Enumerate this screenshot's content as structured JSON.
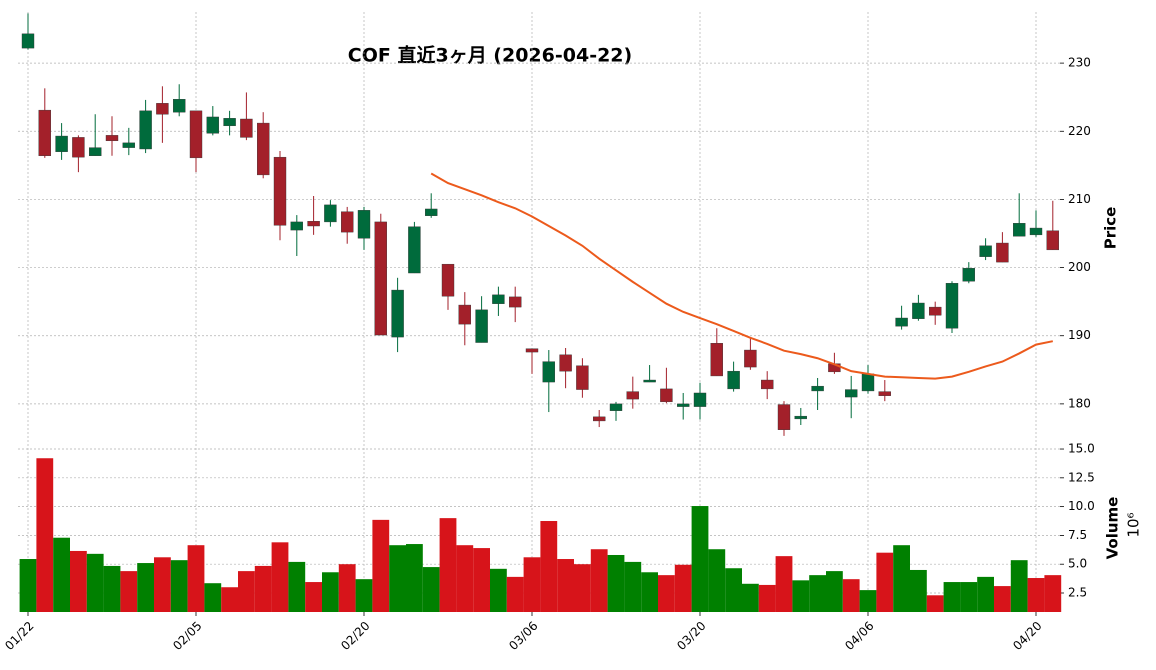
{
  "chart_data": {
    "type": "candlestick",
    "title": "COF  直近3ヶ月  (2026-04-22)",
    "y_label": "Price",
    "categories": [
      "01/22",
      null,
      null,
      null,
      null,
      null,
      null,
      null,
      null,
      null,
      "02/05",
      null,
      null,
      null,
      null,
      null,
      null,
      null,
      null,
      null,
      "02/20",
      null,
      null,
      null,
      null,
      null,
      null,
      null,
      null,
      null,
      "03/06",
      null,
      null,
      null,
      null,
      null,
      null,
      null,
      null,
      null,
      "03/20",
      null,
      null,
      null,
      null,
      null,
      null,
      null,
      null,
      null,
      "04/06",
      null,
      null,
      null,
      null,
      null,
      null,
      null,
      null,
      null,
      "04/20",
      null
    ],
    "open": [
      232.2,
      223.1,
      217.0,
      219.1,
      216.4,
      219.4,
      217.6,
      217.4,
      224.1,
      222.8,
      223.0,
      219.7,
      220.8,
      221.8,
      221.2,
      216.2,
      205.5,
      206.8,
      206.7,
      208.2,
      204.3,
      206.7,
      189.8,
      199.2,
      207.6,
      200.5,
      194.5,
      189.0,
      194.7,
      195.7,
      188.1,
      183.2,
      187.2,
      185.6,
      178.1,
      179.0,
      181.8,
      183.2,
      182.2,
      179.6,
      179.6,
      188.9,
      182.2,
      187.9,
      183.5,
      179.9,
      177.8,
      181.9,
      185.9,
      181.0,
      181.9,
      181.8,
      191.4,
      192.5,
      194.2,
      191.1,
      198.0,
      201.6,
      203.6,
      204.6,
      204.8,
      205.4
    ],
    "high": [
      237.3,
      226.3,
      221.2,
      219.4,
      222.5,
      222.2,
      220.5,
      224.6,
      226.6,
      226.9,
      223.0,
      223.7,
      223.0,
      225.7,
      222.8,
      217.1,
      207.7,
      210.5,
      209.9,
      208.9,
      208.9,
      207.9,
      198.5,
      206.7,
      210.9,
      200.5,
      196.4,
      195.8,
      197.2,
      197.2,
      188.1,
      187.9,
      188.2,
      186.7,
      179.1,
      180.3,
      184.0,
      185.7,
      185.3,
      181.6,
      183.1,
      191.1,
      186.2,
      189.8,
      184.8,
      180.4,
      179.4,
      183.8,
      187.5,
      184.1,
      185.7,
      183.5,
      194.4,
      196.0,
      195.0,
      198.0,
      200.8,
      204.3,
      205.2,
      210.9,
      208.4,
      209.8
    ],
    "low": [
      232.0,
      216.1,
      215.8,
      214.0,
      216.4,
      216.4,
      216.5,
      216.8,
      218.3,
      222.2,
      214.0,
      219.4,
      219.4,
      218.7,
      213.1,
      204.0,
      201.7,
      204.8,
      206.0,
      203.5,
      202.6,
      190.1,
      187.6,
      199.2,
      207.3,
      193.8,
      188.6,
      189.0,
      192.9,
      192.0,
      184.4,
      178.8,
      182.3,
      180.9,
      176.6,
      177.5,
      179.3,
      183.2,
      180.1,
      177.7,
      177.7,
      184.1,
      181.8,
      185.0,
      180.7,
      175.3,
      176.9,
      179.1,
      184.4,
      177.9,
      181.5,
      180.4,
      190.9,
      192.2,
      191.6,
      190.4,
      197.7,
      201.1,
      200.8,
      204.6,
      204.5,
      202.6
    ],
    "close": [
      234.3,
      216.4,
      219.3,
      216.2,
      217.6,
      218.6,
      218.3,
      223.0,
      222.5,
      224.7,
      216.1,
      222.1,
      221.9,
      219.1,
      213.6,
      206.2,
      206.7,
      206.1,
      209.2,
      205.2,
      208.4,
      190.1,
      196.7,
      206.0,
      208.6,
      195.8,
      191.7,
      193.8,
      196.0,
      194.2,
      187.6,
      186.2,
      184.8,
      182.1,
      177.5,
      180.0,
      180.7,
      183.5,
      180.3,
      180.0,
      181.6,
      184.1,
      184.8,
      185.4,
      182.2,
      176.2,
      178.2,
      182.6,
      184.7,
      182.1,
      184.4,
      181.2,
      192.6,
      194.8,
      193.0,
      197.7,
      199.9,
      203.2,
      200.8,
      206.5,
      205.8,
      202.6
    ],
    "up_color": "#006b3c",
    "down_color": "#a3202a",
    "moving_average": {
      "color": "#ec5a1c",
      "values": [
        null,
        null,
        null,
        null,
        null,
        null,
        null,
        null,
        null,
        null,
        null,
        null,
        null,
        null,
        null,
        null,
        null,
        null,
        null,
        null,
        null,
        null,
        null,
        null,
        213.8,
        212.4,
        211.5,
        210.6,
        209.6,
        208.7,
        207.5,
        206.1,
        204.7,
        203.2,
        201.3,
        199.6,
        197.9,
        196.3,
        194.7,
        193.5,
        192.6,
        191.7,
        190.7,
        189.7,
        188.8,
        187.8,
        187.3,
        186.7,
        185.8,
        184.8,
        184.4,
        184.0,
        183.9,
        183.8,
        183.7,
        184.0,
        184.7,
        185.5,
        186.2,
        187.4,
        188.7,
        189.2
      ]
    },
    "ylim": [
      174.7,
      237.5
    ],
    "yticks": [
      180,
      190,
      200,
      210,
      220,
      230
    ],
    "grid": true,
    "volume": {
      "label": "Volume",
      "unit": "10⁶",
      "values": [
        5.45,
        14.2,
        7.3,
        6.15,
        5.9,
        4.85,
        4.4,
        5.1,
        5.6,
        5.35,
        6.65,
        3.35,
        3.0,
        4.4,
        4.85,
        6.9,
        5.2,
        3.45,
        4.3,
        5.0,
        3.7,
        8.85,
        6.65,
        6.75,
        4.75,
        9.0,
        6.65,
        6.4,
        4.6,
        3.9,
        5.6,
        8.75,
        5.45,
        5.0,
        6.3,
        5.8,
        5.2,
        4.3,
        4.05,
        4.95,
        10.05,
        6.3,
        4.65,
        3.3,
        3.2,
        5.7,
        3.6,
        4.05,
        4.4,
        3.7,
        2.75,
        6.0,
        6.65,
        4.5,
        2.3,
        3.45,
        3.45,
        3.9,
        3.1,
        5.35,
        3.8,
        4.05
      ],
      "colors": [
        "#008000",
        "#d7141a",
        "#008000",
        "#d7141a",
        "#008000",
        "#008000",
        "#d7141a",
        "#008000",
        "#d7141a",
        "#008000",
        "#d7141a",
        "#008000",
        "#d7141a",
        "#d7141a",
        "#d7141a",
        "#d7141a",
        "#008000",
        "#d7141a",
        "#008000",
        "#d7141a",
        "#008000",
        "#d7141a",
        "#008000",
        "#008000",
        "#008000",
        "#d7141a",
        "#d7141a",
        "#d7141a",
        "#008000",
        "#d7141a",
        "#d7141a",
        "#d7141a",
        "#d7141a",
        "#d7141a",
        "#d7141a",
        "#008000",
        "#008000",
        "#008000",
        "#d7141a",
        "#d7141a",
        "#008000",
        "#008000",
        "#008000",
        "#008000",
        "#d7141a",
        "#d7141a",
        "#008000",
        "#008000",
        "#008000",
        "#d7141a",
        "#008000",
        "#d7141a",
        "#008000",
        "#008000",
        "#d7141a",
        "#008000",
        "#008000",
        "#008000",
        "#d7141a",
        "#008000",
        "#d7141a",
        "#d7141a"
      ],
      "ylim": [
        0.85,
        15.35
      ],
      "yticks": [
        2.5,
        {
          "value": 5,
          "label": "5.0"
        },
        7.5,
        {
          "value": 10,
          "label": "10.0"
        },
        12.5,
        {
          "value": 15,
          "label": "15.0"
        }
      ]
    }
  }
}
